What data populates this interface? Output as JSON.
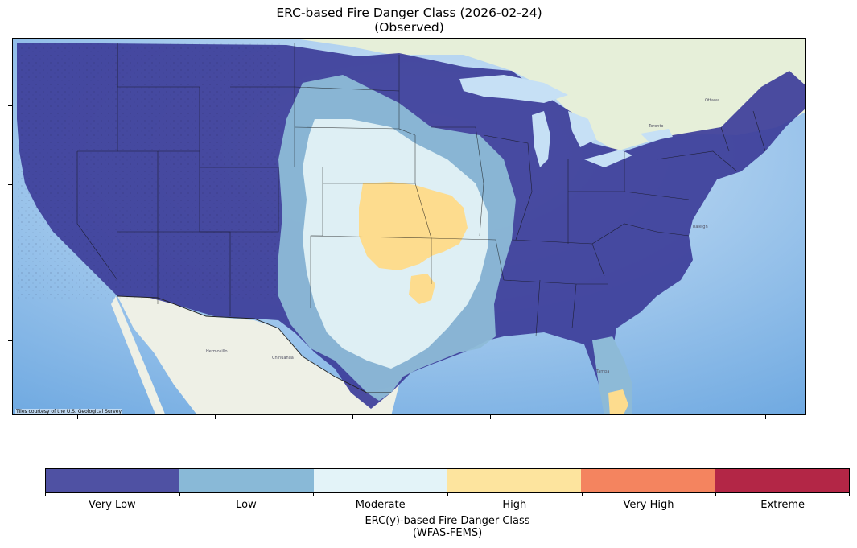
{
  "title": {
    "line1": "ERC-based Fire Danger Class (2026-02-24)",
    "line2": "(Observed)"
  },
  "map": {
    "attribution": "Tiles courtesy of the U.S. Geological Survey",
    "colors": {
      "ocean": "#c6e0f5",
      "land_base": "#eef2ea",
      "very_low": "#3d3e9a",
      "low": "#8dbad7",
      "moderate": "#e3f2f6",
      "high": "#fddc8e"
    }
  },
  "colorbar": {
    "classes": [
      {
        "label": "Very Low",
        "color": "#4f51a3"
      },
      {
        "label": "Low",
        "color": "#89b9d7"
      },
      {
        "label": "Moderate",
        "color": "#e3f3f8"
      },
      {
        "label": "High",
        "color": "#fde49e"
      },
      {
        "label": "Very High",
        "color": "#f4845f"
      },
      {
        "label": "Extreme",
        "color": "#b32646"
      }
    ],
    "title_line1": "ERC(y)-based Fire Danger Class",
    "title_line2": "(WFAS-FEMS)"
  }
}
